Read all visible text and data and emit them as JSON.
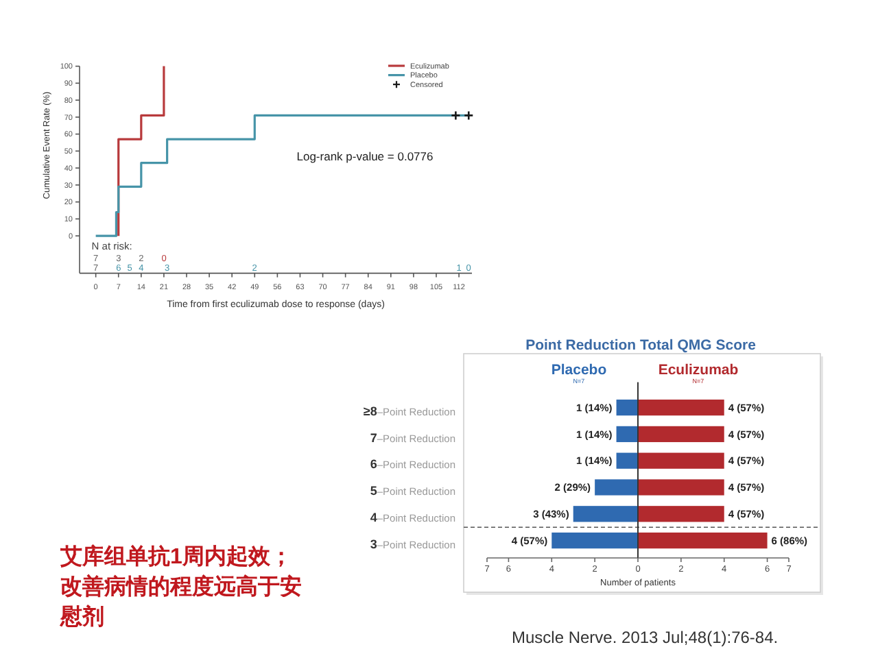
{
  "chart_data": [
    {
      "type": "step",
      "xlabel": "Time from first eculizumab dose to response (days)",
      "ylabel": "Cumulative Event Rate (%)",
      "xlim": [
        -5,
        116
      ],
      "ylim": [
        -22,
        100
      ],
      "xticks": [
        0,
        7,
        14,
        21,
        28,
        35,
        42,
        49,
        56,
        63,
        70,
        77,
        84,
        91,
        98,
        105,
        112
      ],
      "yticks": [
        0,
        10,
        20,
        30,
        40,
        50,
        60,
        70,
        80,
        90,
        100
      ],
      "legend": "top right",
      "line_style": "solid",
      "series": [
        {
          "name": "Eculizumab",
          "color": "#b83a3c",
          "x": [
            7,
            7,
            14,
            21
          ],
          "values": [
            0,
            57,
            71,
            100
          ]
        },
        {
          "name": "Placebo",
          "color": "#4694a8",
          "x": [
            0,
            6.3,
            7,
            14,
            22,
            49,
            115
          ],
          "values": [
            0,
            14,
            29,
            43,
            57,
            71,
            71
          ]
        },
        {
          "name": "Censored",
          "type": "scatter",
          "marker": "cross",
          "color": "#1a1a1a",
          "x": [
            111,
            115
          ],
          "values": [
            71,
            71
          ]
        }
      ],
      "annotations": [
        "Log-rank p-value = 0.0776",
        "N at risk:",
        "7",
        "3",
        "2",
        "0",
        "7",
        "6",
        "5",
        "4",
        "3",
        "2",
        "1",
        "0"
      ]
    },
    {
      "type": "bar",
      "orientation": "horizontal",
      "title": "Point Reduction Total QMG Score",
      "xlabel": "Number of patients",
      "legend": "top",
      "categories": [
        "≥8–Point Reduction",
        "7–Point Reduction",
        "6–Point Reduction",
        "5–Point Reduction",
        "4–Point Reduction",
        "3–Point Reduction"
      ],
      "xlim": [
        7,
        0
      ],
      "xticks": [
        7,
        6,
        4,
        2,
        0
      ],
      "series": [
        {
          "name": "Placebo",
          "color": "#2f6ab1",
          "values": [
            1,
            1,
            1,
            2,
            3,
            4
          ],
          "value_labels": [
            "1 (14%)",
            "1 (14%)",
            "1 (14%)",
            "2 (29%)",
            "3 (43%)",
            "4 (57%)"
          ]
        }
      ],
      "annotations": [
        "N=7"
      ]
    },
    {
      "type": "bar",
      "orientation": "horizontal",
      "legend": "top",
      "categories": [
        null,
        null,
        null,
        null,
        null,
        null
      ],
      "xlim": [
        0,
        7
      ],
      "xticks": [
        2,
        4,
        6,
        7
      ],
      "series": [
        {
          "name": "Eculizumab",
          "color": "#b22a2e",
          "values": [
            4,
            4,
            4,
            4,
            4,
            6
          ],
          "value_labels": [
            "4 (57%)",
            "4 (57%)",
            "4 (57%)",
            "4 (57%)",
            "4 (57%)",
            "6 (86%)"
          ]
        }
      ],
      "annotations": [
        "N=7"
      ]
    },
    {
      "type": "other",
      "annotations": [
        "艾库组单抗1周内起效；改善病情的程度远高于安慰剂",
        "Muscle Nerve. 2013 Jul;48(1):76-84."
      ]
    }
  ]
}
